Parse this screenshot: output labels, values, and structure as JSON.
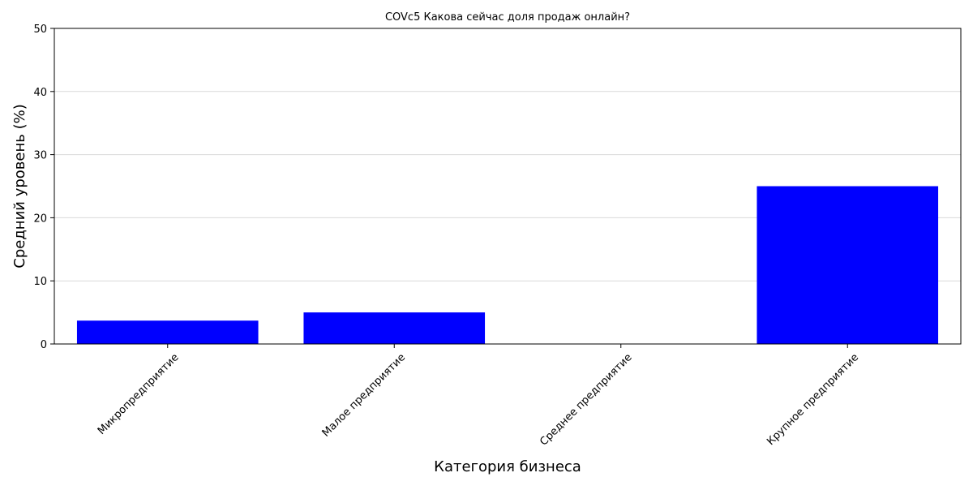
{
  "chart_data": {
    "type": "bar",
    "title": "COVc5 Какова сейчас доля продаж онлайн?",
    "xlabel": "Категория бизнеса",
    "ylabel": "Средний уровень (%)",
    "categories": [
      "Микропредприятие",
      "Малое предприятие",
      "Среднее предприятие",
      "Крупное предприятие"
    ],
    "values": [
      3.7,
      5.0,
      0,
      25.0
    ],
    "ylim": [
      0,
      50
    ],
    "yticks": [
      0,
      10,
      20,
      30,
      40,
      50
    ],
    "grid": "horizontal",
    "bar_color": "#0000ff",
    "grid_color": "#d9d9d9",
    "legend": "none"
  }
}
